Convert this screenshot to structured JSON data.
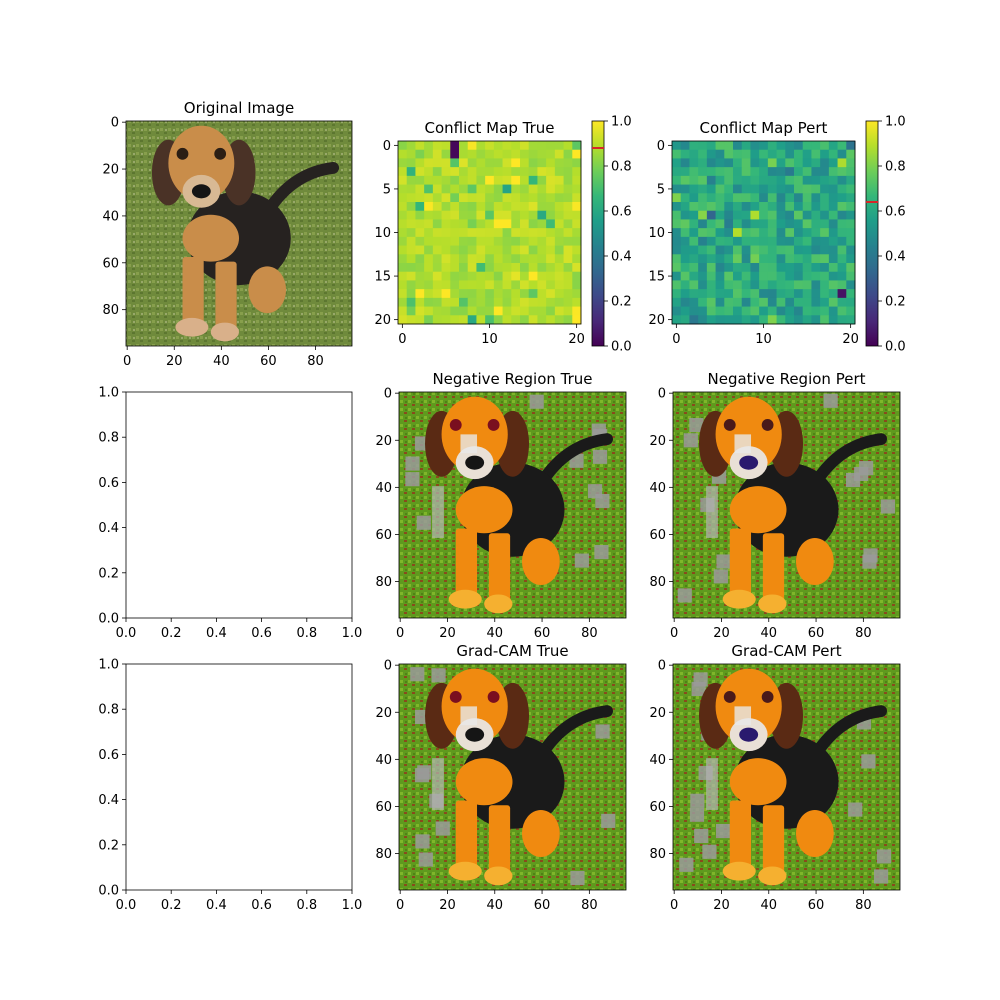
{
  "figure": {
    "background": "#ffffff"
  },
  "chart_data": [
    {
      "id": "original",
      "type": "image",
      "title": "Original Image",
      "image_content": "photo of a hound dog puppy sitting on green grass",
      "xlim": [
        0,
        96
      ],
      "ylim": [
        96,
        0
      ],
      "xticks": [
        0,
        20,
        40,
        60,
        80
      ],
      "yticks": [
        0,
        20,
        40,
        60,
        80
      ],
      "grid": false
    },
    {
      "id": "conflict-true",
      "type": "heatmap",
      "title": "Conflict Map True",
      "size": [
        21,
        21
      ],
      "xlim": [
        0,
        20
      ],
      "ylim": [
        20,
        0
      ],
      "xticks": [
        0,
        10,
        20
      ],
      "yticks": [
        0,
        5,
        10,
        15,
        20
      ],
      "colormap": "viridis",
      "colorbar": {
        "range": [
          0,
          1
        ],
        "ticks": [
          0.0,
          0.2,
          0.4,
          0.6,
          0.8,
          1.0
        ],
        "marker_value": 0.88,
        "marker_color": "#d62728"
      },
      "typical_value": 0.88,
      "grid": false
    },
    {
      "id": "conflict-pert",
      "type": "heatmap",
      "title": "Conflict Map Pert",
      "size": [
        21,
        21
      ],
      "xlim": [
        0,
        20
      ],
      "ylim": [
        20,
        0
      ],
      "xticks": [
        0,
        10,
        20
      ],
      "yticks": [
        0,
        5,
        10,
        15,
        20
      ],
      "colormap": "viridis",
      "colorbar": {
        "range": [
          0,
          1
        ],
        "ticks": [
          0.0,
          0.2,
          0.4,
          0.6,
          0.8,
          1.0
        ],
        "marker_value": 0.64,
        "marker_color": "#d62728"
      },
      "typical_value": 0.6,
      "grid": false
    },
    {
      "id": "empty-1",
      "type": "empty",
      "title": "",
      "xlim": [
        0,
        1
      ],
      "ylim": [
        0,
        1
      ],
      "xticks": [
        0.0,
        0.2,
        0.4,
        0.6,
        0.8,
        1.0
      ],
      "yticks": [
        0.0,
        0.2,
        0.4,
        0.6,
        0.8,
        1.0
      ]
    },
    {
      "id": "negative-true",
      "type": "image",
      "title": "Negative Region True",
      "image_content": "saturated dog image with gray masked background patches",
      "xlim": [
        0,
        96
      ],
      "ylim": [
        96,
        0
      ],
      "xticks": [
        0,
        20,
        40,
        60,
        80
      ],
      "yticks": [
        0,
        20,
        40,
        60,
        80
      ],
      "grid": false
    },
    {
      "id": "negative-pert",
      "type": "image",
      "title": "Negative Region Pert",
      "image_content": "saturated dog image with gray masked background patches",
      "xlim": [
        0,
        96
      ],
      "ylim": [
        96,
        0
      ],
      "xticks": [
        0,
        20,
        40,
        60,
        80
      ],
      "yticks": [
        0,
        20,
        40,
        60,
        80
      ],
      "grid": false
    },
    {
      "id": "empty-2",
      "type": "empty",
      "title": "",
      "xlim": [
        0,
        1
      ],
      "ylim": [
        0,
        1
      ],
      "xticks": [
        0.0,
        0.2,
        0.4,
        0.6,
        0.8,
        1.0
      ],
      "yticks": [
        0.0,
        0.2,
        0.4,
        0.6,
        0.8,
        1.0
      ]
    },
    {
      "id": "gradcam-true",
      "type": "image",
      "title": "Grad-CAM True",
      "image_content": "saturated dog image with gray masked background patches",
      "xlim": [
        0,
        96
      ],
      "ylim": [
        96,
        0
      ],
      "xticks": [
        0,
        20,
        40,
        60,
        80
      ],
      "yticks": [
        0,
        20,
        40,
        60,
        80
      ],
      "grid": false
    },
    {
      "id": "gradcam-pert",
      "type": "image",
      "title": "Grad-CAM Pert",
      "image_content": "saturated dog image with gray masked background patches",
      "xlim": [
        0,
        96
      ],
      "ylim": [
        96,
        0
      ],
      "xticks": [
        0,
        20,
        40,
        60,
        80
      ],
      "yticks": [
        0,
        20,
        40,
        60,
        80
      ],
      "grid": false
    }
  ]
}
